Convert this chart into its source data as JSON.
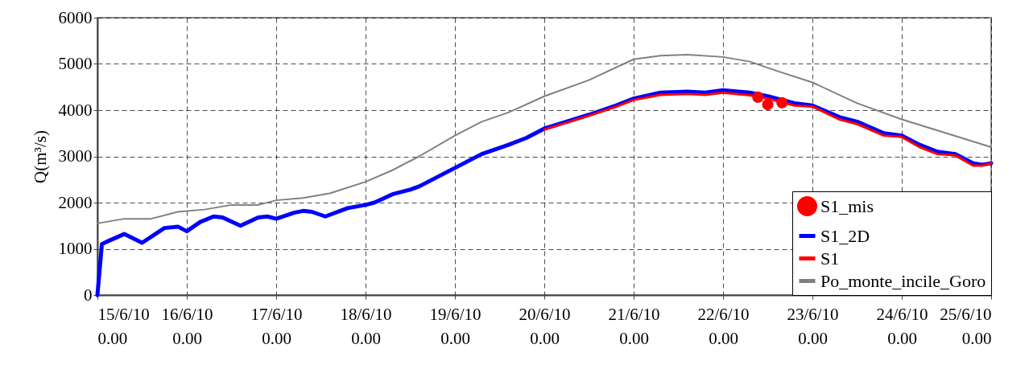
{
  "chart_data": {
    "type": "line",
    "ylabel": "Q(m³/s)",
    "xlim": [
      "--06-15",
      "--06-25"
    ],
    "ylim": [
      0,
      6000
    ],
    "xticks": [
      {
        "value": "--06-15",
        "label": "15/6/10\n0.00"
      },
      {
        "value": "--06-16",
        "label": "16/6/10\n0.00"
      },
      {
        "value": "--06-17",
        "label": "17/6/10\n0.00"
      },
      {
        "value": "--06-18",
        "label": "18/6/10\n0.00"
      },
      {
        "value": "--06-19",
        "label": "19/6/10\n0.00"
      },
      {
        "value": "--06-20",
        "label": "20/6/10\n0.00"
      },
      {
        "value": "--06-21",
        "label": "21/6/10\n0.00"
      },
      {
        "value": "--06-22",
        "label": "22/6/10\n0.00"
      },
      {
        "value": "--06-23",
        "label": "23/6/10\n0.00"
      },
      {
        "value": "--06-24",
        "label": "24/6/10\n0.00"
      },
      {
        "value": "--06-25",
        "label": "25/6/10\n0.00"
      }
    ],
    "yticks": [
      0,
      1000,
      2000,
      3000,
      4000,
      5000,
      6000
    ],
    "grid": true,
    "legend": "bottom right",
    "line_style": "solid",
    "series": [
      {
        "name": "S1_mis",
        "type": "scatter",
        "color": "#ff0000",
        "x": [
          "--06-22T09:22",
          "--06-22T12:00",
          "--06-22T15:50"
        ],
        "values": [
          4280,
          4120,
          4160
        ]
      },
      {
        "name": "S1_2D",
        "color": "#0000ff",
        "x": [
          "--06-15T00:00",
          "--06-15T01:12",
          "--06-15T02:24",
          "--06-15T07:12",
          "--06-15T12:00",
          "--06-15T18:00",
          "--06-15T21:36",
          "--06-16T00:00",
          "--06-16T03:36",
          "--06-16T07:12",
          "--06-16T09:36",
          "--06-16T14:24",
          "--06-16T19:12",
          "--06-16T21:36",
          "--06-17T00:00",
          "--06-17T04:48",
          "--06-17T07:12",
          "--06-17T09:36",
          "--06-17T13:12",
          "--06-17T19:12",
          "--06-18T00:00",
          "--06-18T02:24",
          "--06-18T07:12",
          "--06-18T12:00",
          "--06-18T14:24",
          "--06-19T00:00",
          "--06-19T07:12",
          "--06-19T14:24",
          "--06-19T19:12",
          "--06-20T00:00",
          "--06-20T12:00",
          "--06-20T19:12",
          "--06-21T00:00",
          "--06-21T07:12",
          "--06-21T14:24",
          "--06-21T19:12",
          "--06-22T00:00",
          "--06-22T07:12",
          "--06-22T12:00",
          "--06-22T19:12",
          "--06-23T00:00",
          "--06-23T07:12",
          "--06-23T12:00",
          "--06-23T19:12",
          "--06-24T00:00",
          "--06-24T04:48",
          "--06-24T09:36",
          "--06-24T14:24",
          "--06-24T19:12",
          "--06-24T21:36",
          "--06-25T00:00"
        ],
        "values": [
          0,
          1100,
          1150,
          1320,
          1130,
          1450,
          1480,
          1380,
          1580,
          1700,
          1680,
          1500,
          1680,
          1700,
          1650,
          1780,
          1820,
          1800,
          1700,
          1880,
          1950,
          2000,
          2180,
          2280,
          2350,
          2750,
          3050,
          3250,
          3400,
          3600,
          3900,
          4100,
          4250,
          4380,
          4400,
          4380,
          4430,
          4380,
          4300,
          4150,
          4100,
          3850,
          3750,
          3500,
          3450,
          3250,
          3100,
          3050,
          2850,
          2820,
          2850
        ]
      },
      {
        "name": "S1",
        "color": "#ff0000",
        "x": [
          "--06-20T00:00",
          "--06-20T12:00",
          "--06-20T19:12",
          "--06-21T00:00",
          "--06-21T07:12",
          "--06-21T14:24",
          "--06-21T19:12",
          "--06-22T00:00",
          "--06-22T07:12",
          "--06-22T12:00",
          "--06-22T19:12",
          "--06-23T00:00",
          "--06-23T07:12",
          "--06-23T12:00",
          "--06-23T19:12",
          "--06-24T00:00",
          "--06-24T04:48",
          "--06-24T09:36",
          "--06-24T14:24",
          "--06-24T19:12",
          "--06-24T21:36",
          "--06-25T00:00"
        ],
        "values": [
          3580,
          3880,
          4070,
          4220,
          4330,
          4350,
          4330,
          4380,
          4320,
          4250,
          4100,
          4080,
          3800,
          3700,
          3450,
          3420,
          3200,
          3050,
          3020,
          2800,
          2800,
          2850
        ]
      },
      {
        "name": "Po_monte_incile_Goro",
        "color": "#808080",
        "x": [
          "--06-15T00:00",
          "--06-15T07:12",
          "--06-15T14:24",
          "--06-15T21:36",
          "--06-16T04:48",
          "--06-16T12:00",
          "--06-16T19:12",
          "--06-17T00:00",
          "--06-17T07:12",
          "--06-17T14:24",
          "--06-18T00:00",
          "--06-18T07:12",
          "--06-18T14:24",
          "--06-19T00:00",
          "--06-19T07:12",
          "--06-19T14:24",
          "--06-20T00:00",
          "--06-20T12:00",
          "--06-21T00:00",
          "--06-21T07:12",
          "--06-21T14:24",
          "--06-22T00:00",
          "--06-22T07:12",
          "--06-22T14:24",
          "--06-23T00:00",
          "--06-23T12:00",
          "--06-24T00:00",
          "--06-24T12:00",
          "--06-25T00:00"
        ],
        "values": [
          1550,
          1650,
          1650,
          1800,
          1850,
          1950,
          1950,
          2050,
          2100,
          2200,
          2450,
          2700,
          3000,
          3450,
          3750,
          3950,
          4300,
          4650,
          5100,
          5180,
          5200,
          5150,
          5050,
          4850,
          4600,
          4150,
          3800,
          3500,
          3200
        ]
      }
    ]
  }
}
